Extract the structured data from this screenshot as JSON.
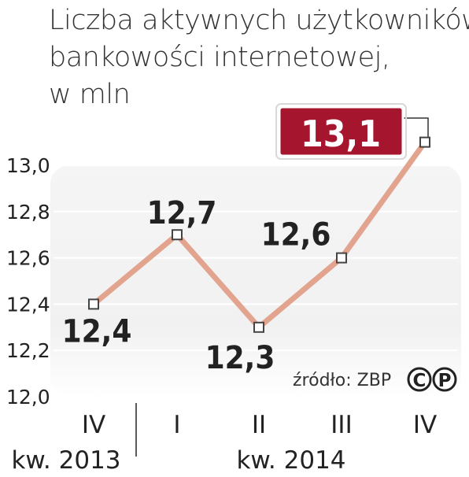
{
  "title_lines": [
    "Liczba aktywnych użytkowników",
    "bankowości internetowej,",
    "w mln"
  ],
  "source_label": "źródło: ZBP",
  "logo_text": "CP",
  "chart_data": {
    "type": "line",
    "title": "Liczba aktywnych użytkowników bankowości internetowej, w mln",
    "categories": [
      "IV",
      "I",
      "II",
      "III",
      "IV"
    ],
    "category_groups": [
      {
        "label": "kw. 2013",
        "categories": [
          "IV"
        ]
      },
      {
        "label": "kw. 2014",
        "categories": [
          "I",
          "II",
          "III",
          "IV"
        ]
      }
    ],
    "series": [
      {
        "name": "",
        "values": [
          12.4,
          12.7,
          12.3,
          12.6,
          13.1
        ]
      }
    ],
    "data_labels": [
      "12,4",
      "12,7",
      "12,3",
      "12,6",
      "13,1"
    ],
    "highlight_index": 4,
    "ylim": [
      12.0,
      13.0
    ],
    "yticks": [
      "12,0",
      "12,2",
      "12,4",
      "12,6",
      "12,8",
      "13,0"
    ],
    "grid": true,
    "colors": {
      "line": "#e2a48f",
      "marker_fill": "#ffffff",
      "marker_stroke": "#444444",
      "highlight_box": "#a5152e",
      "plot_bg_top": "#f5f5f5",
      "plot_bg_bottom": "#ffffff",
      "text": "#222222"
    }
  }
}
